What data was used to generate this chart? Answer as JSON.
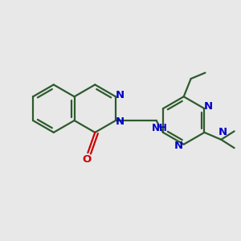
{
  "background_color": "#e8e8e8",
  "bond_color": "#2d5a2d",
  "N_color": "#0000cc",
  "O_color": "#cc0000",
  "line_width": 1.6,
  "font_size": 8.5,
  "fig_width": 3.0,
  "fig_height": 3.0,
  "dpi": 100,
  "xlim": [
    0,
    10
  ],
  "ylim": [
    0,
    10
  ]
}
